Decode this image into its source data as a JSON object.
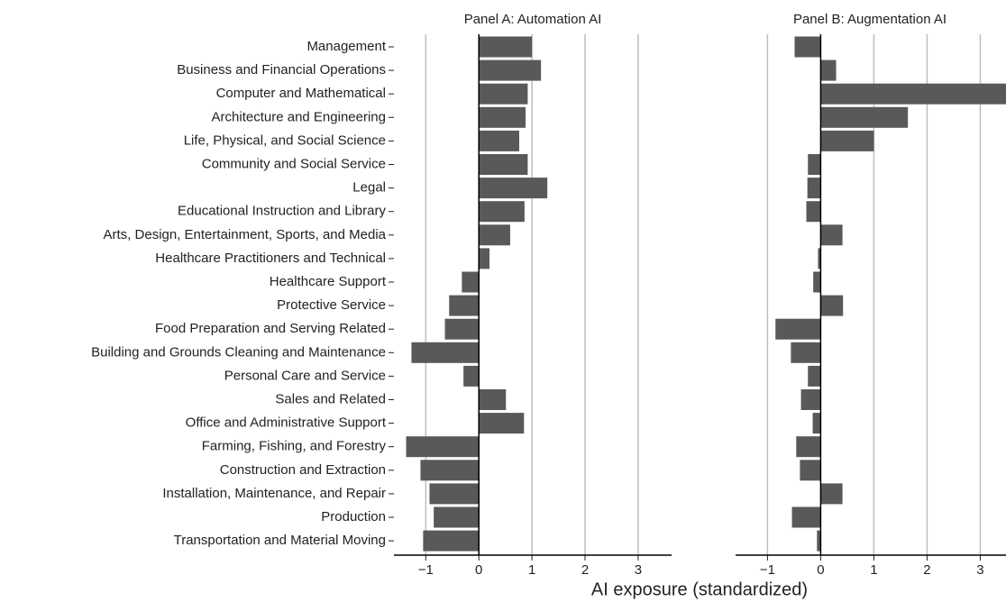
{
  "chart_data": {
    "type": "bar",
    "orientation": "horizontal",
    "x_label": "AI exposure (standardized)",
    "color": "#595959",
    "grid": true,
    "categories": [
      "Management",
      "Business and Financial Operations",
      "Computer and Mathematical",
      "Architecture and Engineering",
      "Life, Physical, and Social Science",
      "Community and Social Service",
      "Legal",
      "Educational Instruction and Library",
      "Arts, Design, Entertainment, Sports, and Media",
      "Healthcare Practitioners and Technical",
      "Healthcare Support",
      "Protective Service",
      "Food Preparation and Serving Related",
      "Building and Grounds Cleaning and Maintenance",
      "Personal Care and Service",
      "Sales and Related",
      "Office and Administrative Support",
      "Farming, Fishing, and Forestry",
      "Construction and Extraction",
      "Installation, Maintenance, and Repair",
      "Production",
      "Transportation and Material Moving"
    ],
    "panels": [
      {
        "title": "Panel A: Automation AI",
        "values": [
          1.0,
          1.17,
          0.92,
          0.88,
          0.76,
          0.92,
          1.29,
          0.86,
          0.59,
          0.2,
          -0.32,
          -0.56,
          -0.64,
          -1.27,
          -0.29,
          0.51,
          0.85,
          -1.37,
          -1.1,
          -0.93,
          -0.85,
          -1.05
        ],
        "xlim": [
          -1.6,
          3.63
        ],
        "xticks": [
          {
            "value": -1,
            "label": "−1"
          },
          0,
          1,
          2,
          3
        ]
      },
      {
        "title": "Panel B: Augmentation AI",
        "values": [
          -0.49,
          0.29,
          3.5,
          1.64,
          1.0,
          -0.24,
          -0.25,
          -0.27,
          0.41,
          -0.05,
          -0.14,
          0.42,
          -0.85,
          -0.56,
          -0.24,
          -0.37,
          -0.15,
          -0.46,
          -0.39,
          0.41,
          -0.54,
          -0.07
        ],
        "xlim": [
          -1.6,
          3.45
        ],
        "xticks": [
          {
            "value": -1,
            "label": "−1"
          },
          0,
          1,
          2,
          3
        ]
      }
    ]
  }
}
